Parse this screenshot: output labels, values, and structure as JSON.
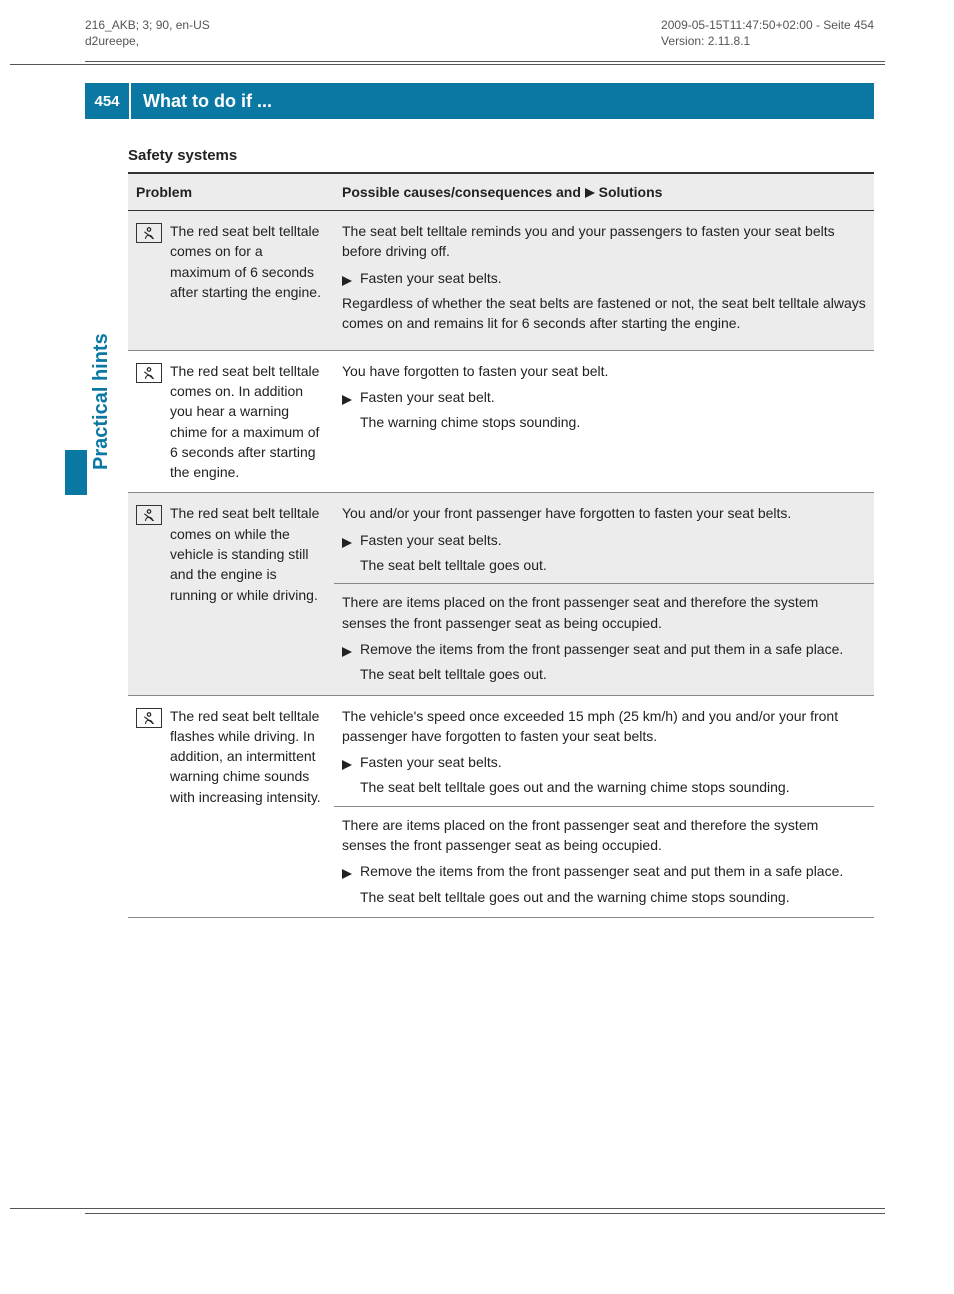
{
  "meta": {
    "left1": "216_AKB; 3; 90, en-US",
    "left2": "d2ureepe,",
    "right1": "2009-05-15T11:47:50+02:00 - Seite 454",
    "right2": "Version: 2.11.8.1"
  },
  "header": {
    "pagenum": "454",
    "title": "What to do if ..."
  },
  "side_tab_label": "Practical hints",
  "section_title": "Safety systems",
  "table": {
    "col_problem": "Problem",
    "col_solution_prefix": "Possible causes/consequences and ",
    "col_solution_suffix": " Solutions"
  },
  "rows": [
    {
      "shaded": true,
      "icon": "seatbelt",
      "problem": "The red seat belt telltale comes on for a maximum of 6 seconds after starting the engine.",
      "solutions": [
        {
          "intro": "The seat belt telltale reminds you and your passengers to fasten your seat belts before driving off.",
          "steps": [
            "Fasten your seat belts."
          ],
          "outro": "Regardless of whether the seat belts are fastened or not, the seat belt telltale always comes on and remains lit for 6 seconds after starting the engine."
        }
      ]
    },
    {
      "shaded": false,
      "icon": "seatbelt",
      "problem": "The red seat belt telltale comes on. In addition you hear a warning chime for a maximum of 6 seconds after starting the engine.",
      "solutions": [
        {
          "intro": "You have forgotten to fasten your seat belt.",
          "steps": [
            "Fasten your seat belt."
          ],
          "after_steps": [
            "The warning chime stops sounding."
          ]
        }
      ]
    },
    {
      "shaded": true,
      "icon": "seatbelt",
      "problem": "The red seat belt telltale comes on while the vehicle is standing still and the engine is running or while driving.",
      "solutions": [
        {
          "intro": "You and/or your front passenger have forgotten to fasten your seat belts.",
          "steps": [
            "Fasten your seat belts."
          ],
          "after_steps": [
            "The seat belt telltale goes out."
          ]
        },
        {
          "intro": "There are items placed on the front passenger seat and therefore the system senses the front passenger seat as being occupied.",
          "steps": [
            "Remove the items from the front passenger seat and put them in a safe place."
          ],
          "after_steps": [
            "The seat belt telltale goes out."
          ]
        }
      ]
    },
    {
      "shaded": false,
      "icon": "seatbelt",
      "problem": "The red seat belt telltale flashes while driving. In addition, an intermittent warning chime sounds with increasing intensity.",
      "solutions": [
        {
          "intro": "The vehicle's speed once exceeded 15 mph (25 km/h) and you and/or your front passenger have forgotten to fasten your seat belts.",
          "steps": [
            "Fasten your seat belts."
          ],
          "after_steps": [
            "The seat belt telltale goes out and the warning chime stops sounding."
          ]
        },
        {
          "intro": "There are items placed on the front passenger seat and therefore the system senses the front passenger seat as being occupied.",
          "steps": [
            "Remove the items from the front passenger seat and put them in a safe place."
          ],
          "after_steps": [
            "The seat belt telltale goes out and the warning chime stops sounding."
          ]
        }
      ]
    }
  ]
}
